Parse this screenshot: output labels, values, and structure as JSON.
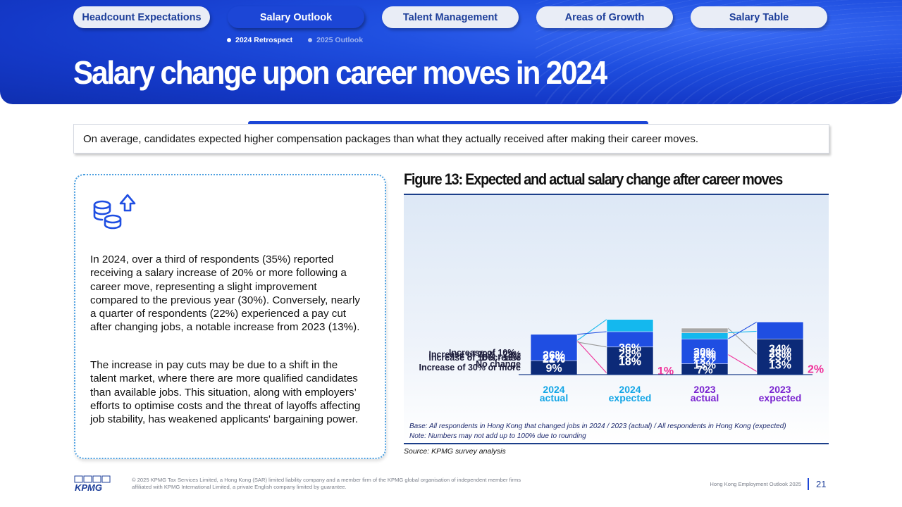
{
  "nav": {
    "tabs": [
      {
        "label": "Headcount Expectations",
        "active": false
      },
      {
        "label": "Salary Outlook",
        "active": true
      },
      {
        "label": "Talent Management",
        "active": false
      },
      {
        "label": "Areas of Growth",
        "active": false
      },
      {
        "label": "Salary Table",
        "active": false
      }
    ],
    "subtabs": [
      {
        "label": "2024 Retrospect",
        "active": true
      },
      {
        "label": "2025 Outlook",
        "active": false
      }
    ]
  },
  "page_title": "Salary change upon career moves in 2024",
  "summary": "On average, candidates expected higher compensation packages than what they actually received after making their career moves.",
  "card": {
    "icon": "coins-up-arrow-icon",
    "paragraph1": "In 2024, over a third of respondents (35%) reported receiving a salary increase of 20% or more following a career move, representing a slight improvement compared to the previous year (30%). Conversely, nearly a quarter of respondents (22%) experienced a pay cut after changing jobs, a notable increase from 2023 (13%).",
    "paragraph2": "The increase in pay cuts may be due to a shift in the talent market, where there are more qualified candidates than available jobs. This situation, along with employers’ efforts to optimise costs and the threat of layoffs affecting job stability, has weakened applicants' bargaining power."
  },
  "figure": {
    "title": "Figure 13: Expected and actual salary change after career moves",
    "base_note": "Base: All respondents in Hong Kong that changed jobs in 2024 / 2023 (actual) / All respondents in Hong Kong (expected)",
    "rounding_note": "Note: Numbers may not add up to 100% due to rounding",
    "source": "Source: KPMG survey analysis"
  },
  "chart_data": {
    "type": "bar",
    "stacked": true,
    "percent": true,
    "categories": [
      {
        "line1": "2024",
        "line2": "actual"
      },
      {
        "line1": "2024",
        "line2": "expected"
      },
      {
        "line1": "2023",
        "line2": "actual"
      },
      {
        "line1": "2023",
        "line2": "expected"
      }
    ],
    "series": [
      {
        "name": "Decrease",
        "color": "#f0319a",
        "values": [
          22,
          1,
          13,
          2
        ]
      },
      {
        "name": "Increase of 10% - No change",
        "color": "#a6a6a6",
        "values": [
          21,
          18,
          30,
          13
        ]
      },
      {
        "name": "Increase of 10% - 19%",
        "color": "#14b8ee",
        "values": [
          22,
          36,
          27,
          28
        ]
      },
      {
        "name": "Increase of 20% - 29%",
        "color": "#1f4ee2",
        "values": [
          26,
          28,
          23,
          34
        ]
      },
      {
        "name": "Increase of 30% or more",
        "color": "#0c2a78",
        "values": [
          9,
          18,
          7,
          23
        ]
      }
    ],
    "labels": [
      [
        "22%",
        "1%",
        "13%",
        "2%"
      ],
      [
        "21%",
        "18%",
        "30%",
        "13%"
      ],
      [
        "22%",
        "36%",
        "27%",
        "28%"
      ],
      [
        "26%",
        "28%",
        "23%",
        "34%"
      ],
      [
        "9%",
        "18%",
        "7%",
        "23%"
      ]
    ],
    "legend_labels": [
      {
        "lines": [
          "Decrease"
        ]
      },
      {
        "lines": [
          "Increase of 10% -",
          "No change"
        ]
      },
      {
        "lines": [
          "Increase of 10% - 19%"
        ]
      },
      {
        "lines": [
          "Increase of 20% - 29%"
        ]
      },
      {
        "lines": [
          "Increase of 30% or more"
        ]
      }
    ],
    "category_colors": [
      "#14a6e6",
      "#14a6e6",
      "#7a25d0",
      "#7a25d0"
    ],
    "ylim": [
      0,
      100
    ],
    "legend": "left"
  },
  "footer": {
    "logo": "KPMG",
    "legal_line1": "© 2025 KPMG Tax Services Limited, a Hong Kong (SAR) limited liability company and a member firm of the KPMG global organisation of independent member firms",
    "legal_line2": "affiliated with KPMG International Limited, a private English company limited by guarantee.",
    "report_name": "Hong Kong Employment Outlook 2025",
    "page_number": "21"
  }
}
